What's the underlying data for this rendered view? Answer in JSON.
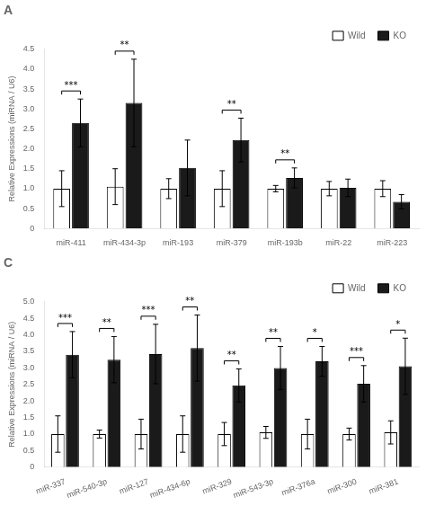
{
  "chart_data": [
    {
      "type": "bar",
      "title": "A",
      "categories": [
        "miR-411",
        "miR-434-3p",
        "miR-193",
        "miR-379",
        "miR-193b",
        "miR-22",
        "miR-223"
      ],
      "series": [
        {
          "name": "Wild",
          "color": "white",
          "values": [
            1.0,
            1.05,
            1.0,
            1.0,
            1.0,
            1.0,
            1.0
          ],
          "errors": [
            0.45,
            0.45,
            0.25,
            0.45,
            0.08,
            0.18,
            0.2
          ]
        },
        {
          "name": "KO",
          "color": "#1a1a1a",
          "values": [
            2.65,
            3.15,
            1.52,
            2.22,
            1.27,
            1.02,
            0.67
          ],
          "errors": [
            0.6,
            1.1,
            0.7,
            0.55,
            0.25,
            0.22,
            0.18
          ]
        }
      ],
      "annotations": [
        {
          "category": "miR-411",
          "text": "***"
        },
        {
          "category": "miR-434-3p",
          "text": "**"
        },
        {
          "category": "miR-379",
          "text": "**"
        },
        {
          "category": "miR-193b",
          "text": "**"
        }
      ],
      "y_label": "Relative Expressions (miRNA / U6)",
      "ylim": [
        0,
        4.5
      ],
      "yticks": [
        0,
        0.5,
        {
          "value": 1,
          "label": "1.0"
        },
        1.5,
        {
          "value": 2,
          "label": "2.0"
        },
        2.5,
        {
          "value": 3,
          "label": "3.0"
        },
        3.5,
        {
          "value": 4,
          "label": "4.0"
        },
        4.5
      ],
      "grid": false,
      "legend": "upper right"
    },
    {
      "type": "bar",
      "title": "C",
      "categories": [
        "miR-337",
        "miR-540-3p",
        "miR-127",
        "miR-434-6p",
        "miR-329",
        "miR-543-3p",
        "miR-376a",
        "miR-300",
        "miR-381"
      ],
      "series": [
        {
          "name": "Wild",
          "color": "white",
          "values": [
            1.0,
            1.0,
            1.0,
            1.0,
            1.0,
            1.05,
            1.0,
            1.0,
            1.05
          ],
          "errors": [
            0.55,
            0.12,
            0.45,
            0.55,
            0.35,
            0.18,
            0.45,
            0.18,
            0.35
          ]
        },
        {
          "name": "KO",
          "color": "#1a1a1a",
          "values": [
            3.4,
            3.25,
            3.42,
            3.6,
            2.47,
            3.0,
            3.2,
            2.52,
            3.05
          ],
          "errors": [
            0.7,
            0.7,
            0.9,
            1.0,
            0.5,
            0.65,
            0.45,
            0.55,
            0.85
          ]
        }
      ],
      "annotations": [
        {
          "category": "miR-337",
          "text": "***"
        },
        {
          "category": "miR-540-3p",
          "text": "**"
        },
        {
          "category": "miR-127",
          "text": "***"
        },
        {
          "category": "miR-434-6p",
          "text": "**"
        },
        {
          "category": "miR-329",
          "text": "**"
        },
        {
          "category": "miR-543-3p",
          "text": "**"
        },
        {
          "category": "miR-376a",
          "text": "*"
        },
        {
          "category": "miR-300",
          "text": "***"
        },
        {
          "category": "miR-381",
          "text": "*"
        }
      ],
      "y_label": "Relative Expressions (miRNA / U6)",
      "ylim": [
        0,
        5.0
      ],
      "yticks": [
        0,
        0.5,
        {
          "value": 1,
          "label": "1.0"
        },
        1.5,
        {
          "value": 2,
          "label": "2.0"
        },
        2.5,
        {
          "value": 3,
          "label": "3.0"
        },
        3.5,
        {
          "value": 4,
          "label": "4.0"
        },
        4.5,
        {
          "value": 5,
          "label": "5.0"
        }
      ],
      "grid": false,
      "legend": "upper right"
    }
  ]
}
